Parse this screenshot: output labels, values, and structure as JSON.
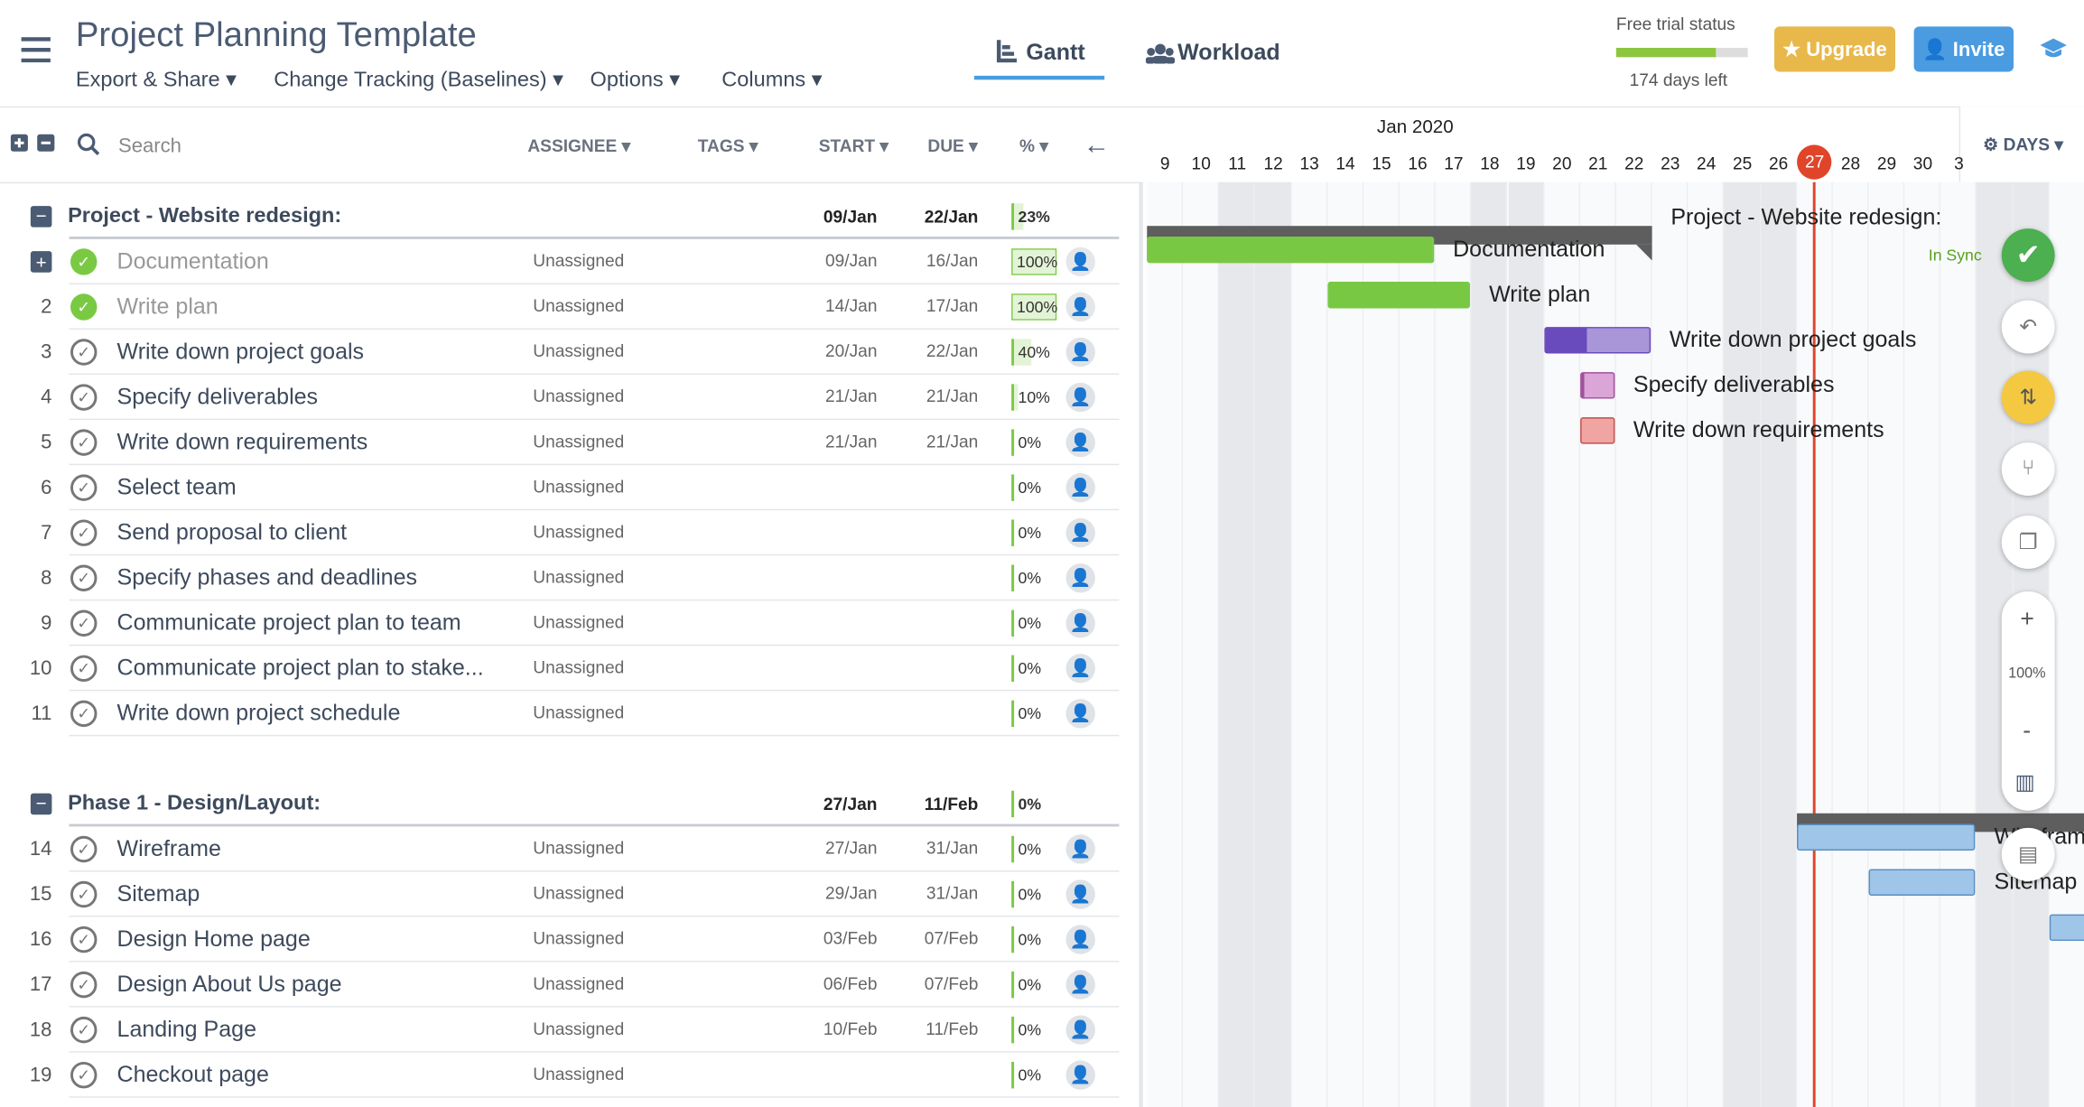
{
  "header": {
    "title": "Project Planning Template",
    "menus": [
      "Export & Share",
      "Change Tracking (Baselines)",
      "Options",
      "Columns"
    ],
    "tabs": [
      "Gantt",
      "Workload"
    ],
    "trial_label": "Free trial status",
    "trial_days": "174 days left",
    "upgrade": "Upgrade",
    "invite": "Invite"
  },
  "toolbar": {
    "search": "Search",
    "columns": [
      "ASSIGNEE",
      "TAGS",
      "START",
      "DUE",
      "%"
    ]
  },
  "timeline": {
    "month": "Jan 2020",
    "days": [
      "9",
      "10",
      "11",
      "12",
      "13",
      "14",
      "15",
      "16",
      "17",
      "18",
      "19",
      "20",
      "21",
      "22",
      "23",
      "24",
      "25",
      "26",
      "27",
      "28",
      "29",
      "30",
      "3"
    ],
    "today": "27",
    "scale": "DAYS",
    "sync": "In Sync",
    "zoom": "100%",
    "zoom_in": "+",
    "zoom_out": "-"
  },
  "groups": [
    {
      "title": "Project - Website redesign:",
      "start": "09/Jan",
      "due": "22/Jan",
      "progress": "23%",
      "tasks": [
        {
          "name": "Documentation",
          "assignee": "Unassigned",
          "start": "09/Jan",
          "due": "16/Jan",
          "progress": "100%",
          "done": true,
          "color": "#b9d0d6",
          "dark": "#79c843"
        },
        {
          "num": "2",
          "name": "Write plan",
          "assignee": "Unassigned",
          "start": "14/Jan",
          "due": "17/Jan",
          "progress": "100%",
          "done": true,
          "color": "#79c843",
          "dark": "#79c843"
        },
        {
          "num": "3",
          "name": "Write down project goals",
          "assignee": "Unassigned",
          "start": "20/Jan",
          "due": "22/Jan",
          "progress": "40%",
          "color": "#a996d9",
          "dark": "#6a4bbd"
        },
        {
          "num": "4",
          "name": "Specify deliverables",
          "assignee": "Unassigned",
          "start": "21/Jan",
          "due": "21/Jan",
          "progress": "10%",
          "color": "#dba5d8",
          "dark": "#a0509a"
        },
        {
          "num": "5",
          "name": "Write down requirements",
          "assignee": "Unassigned",
          "start": "21/Jan",
          "due": "21/Jan",
          "progress": "0%",
          "color": "#f0a5a2",
          "dark": "#c0504d"
        },
        {
          "num": "6",
          "name": "Select team",
          "assignee": "Unassigned",
          "progress": "0%"
        },
        {
          "num": "7",
          "name": "Send proposal to client",
          "assignee": "Unassigned",
          "progress": "0%"
        },
        {
          "num": "8",
          "name": "Specify phases and deadlines",
          "assignee": "Unassigned",
          "progress": "0%"
        },
        {
          "num": "9",
          "name": "Communicate project plan to team",
          "assignee": "Unassigned",
          "progress": "0%"
        },
        {
          "num": "10",
          "name": "Communicate project plan to stake...",
          "assignee": "Unassigned",
          "progress": "0%"
        },
        {
          "num": "11",
          "name": "Write down project schedule",
          "assignee": "Unassigned",
          "progress": "0%"
        }
      ]
    },
    {
      "title": "Phase 1 - Design/Layout:",
      "start": "27/Jan",
      "due": "11/Feb",
      "progress": "0%",
      "tasks": [
        {
          "num": "14",
          "name": "Wireframe",
          "assignee": "Unassigned",
          "start": "27/Jan",
          "due": "31/Jan",
          "progress": "0%",
          "color": "#9fc5e8",
          "dark": "#5b8fc4"
        },
        {
          "num": "15",
          "name": "Sitemap",
          "assignee": "Unassigned",
          "start": "29/Jan",
          "due": "31/Jan",
          "progress": "0%",
          "color": "#9fc5e8",
          "dark": "#5b8fc4"
        },
        {
          "num": "16",
          "name": "Design Home page",
          "assignee": "Unassigned",
          "start": "03/Feb",
          "due": "07/Feb",
          "progress": "0%",
          "color": "#9fc5e8",
          "dark": "#5b8fc4"
        },
        {
          "num": "17",
          "name": "Design About Us page",
          "assignee": "Unassigned",
          "start": "06/Feb",
          "due": "07/Feb",
          "progress": "0%",
          "color": "#9fc5e8",
          "dark": "#5b8fc4"
        },
        {
          "num": "18",
          "name": "Landing Page",
          "assignee": "Unassigned",
          "start": "10/Feb",
          "due": "11/Feb",
          "progress": "0%",
          "color": "#9fc5e8",
          "dark": "#5b8fc4"
        },
        {
          "num": "19",
          "name": "Checkout page",
          "assignee": "Unassigned",
          "progress": "0%"
        }
      ]
    }
  ]
}
